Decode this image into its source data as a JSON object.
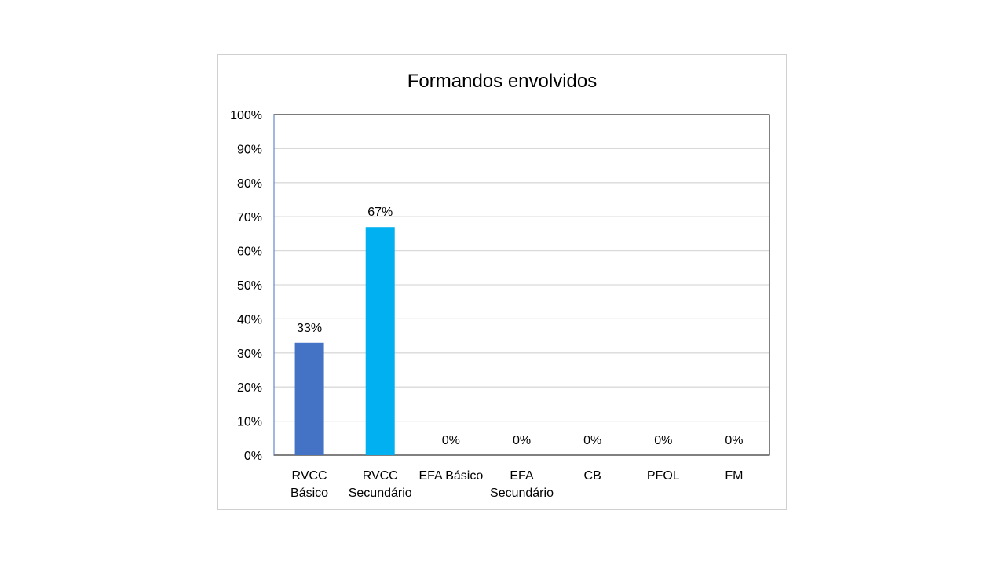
{
  "chart_data": {
    "type": "bar",
    "title": "Formandos envolvidos",
    "xlabel": "",
    "ylabel": "",
    "categories": [
      [
        "RVCC",
        "Básico"
      ],
      [
        "RVCC",
        "Secundário"
      ],
      [
        "EFA Básico"
      ],
      [
        "EFA",
        "Secundário"
      ],
      [
        "CB"
      ],
      [
        "PFOL"
      ],
      [
        "FM"
      ]
    ],
    "values": [
      33,
      67,
      0,
      0,
      0,
      0,
      0
    ],
    "data_labels": [
      "33%",
      "67%",
      "0%",
      "0%",
      "0%",
      "0%",
      "0%"
    ],
    "bar_colors": [
      "#4472C4",
      "#00B0F0",
      "#4472C4",
      "#4472C4",
      "#4472C4",
      "#4472C4",
      "#4472C4"
    ],
    "ylim": [
      0,
      100
    ],
    "yticks": [
      0,
      10,
      20,
      30,
      40,
      50,
      60,
      70,
      80,
      90,
      100
    ],
    "ytick_labels": [
      "0%",
      "10%",
      "20%",
      "30%",
      "40%",
      "50%",
      "60%",
      "70%",
      "80%",
      "90%",
      "100%"
    ],
    "grid": true,
    "gridline_color": "#D9D9D9",
    "legend": "none"
  }
}
